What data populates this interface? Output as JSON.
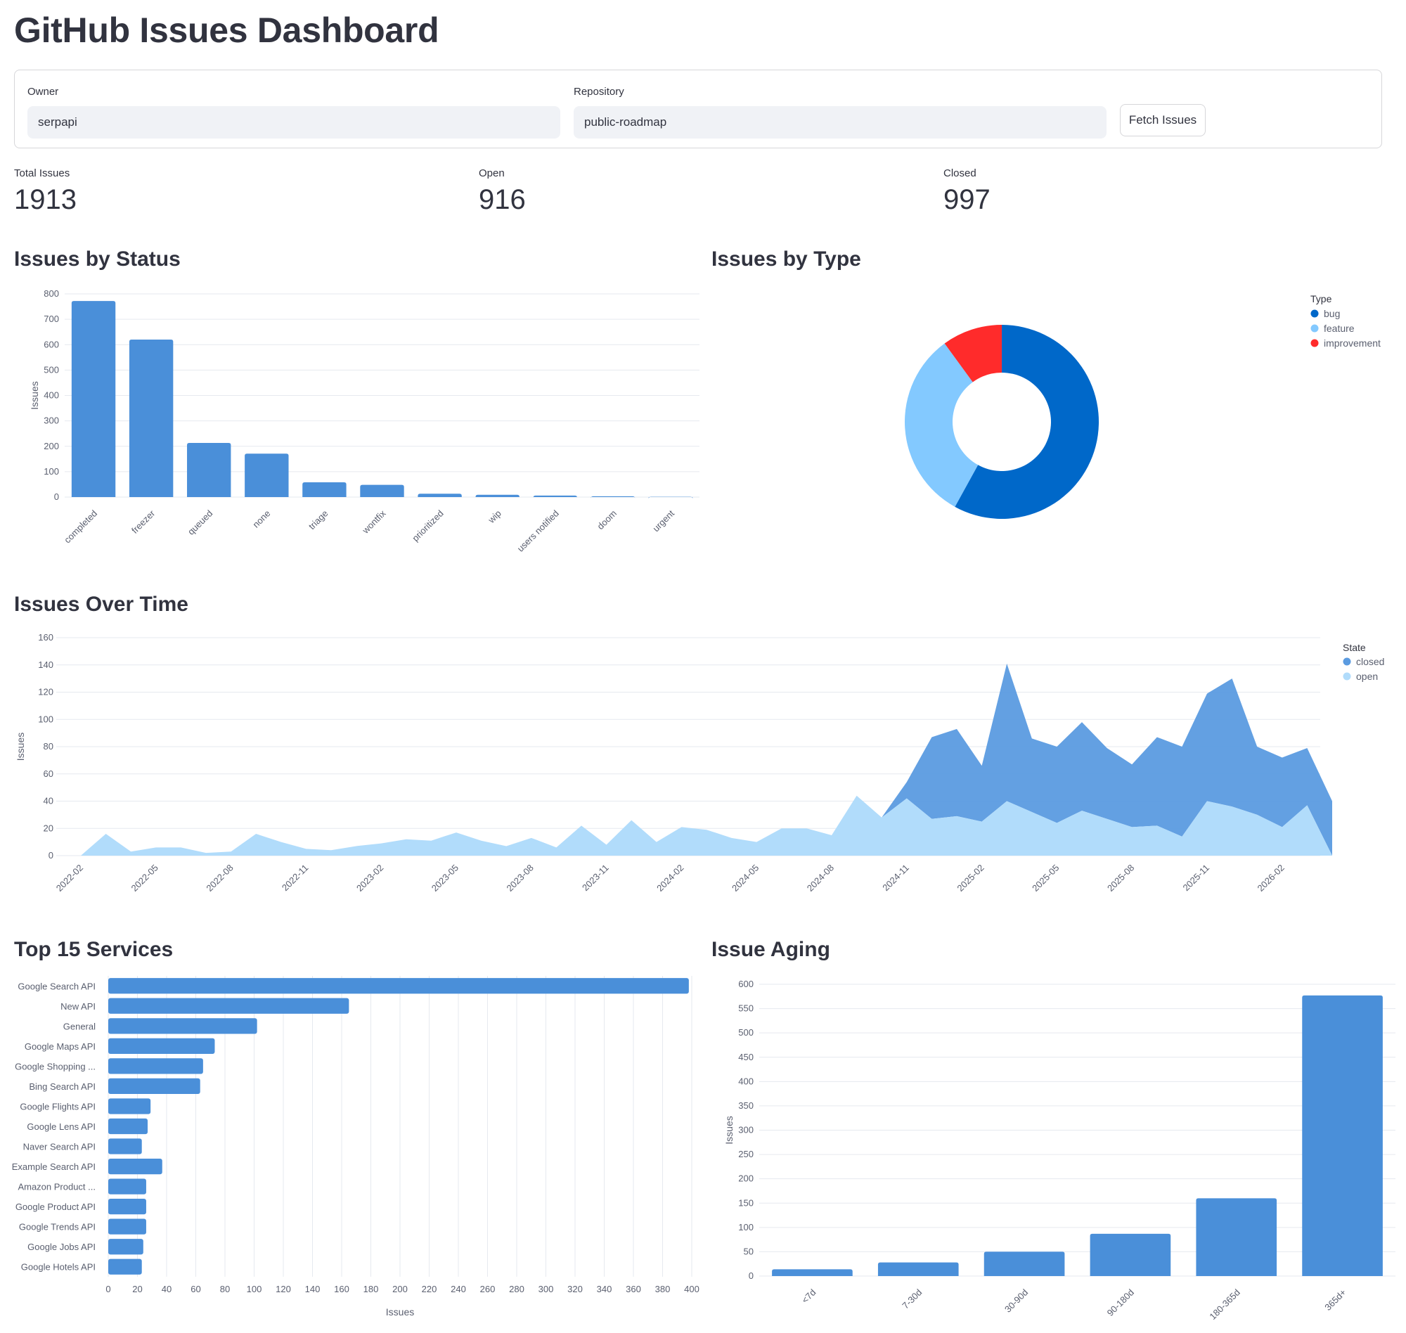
{
  "page": {
    "title": "GitHub Issues Dashboard"
  },
  "form": {
    "owner_label": "Owner",
    "owner_value": "serpapi",
    "repo_label": "Repository",
    "repo_value": "public-roadmap",
    "fetch_label": "Fetch Issues"
  },
  "metrics": {
    "total_label": "Total Issues",
    "total_value": "1913",
    "open_label": "Open",
    "open_value": "916",
    "closed_label": "Closed",
    "closed_value": "997"
  },
  "sections": {
    "status_title": "Issues by Status",
    "type_title": "Issues by Type",
    "time_title": "Issues Over Time",
    "services_title": "Top 15 Services",
    "aging_title": "Issue Aging"
  },
  "colors": {
    "bar": "#4a8fd9",
    "grid": "#e6e9ef",
    "tick": "#5a5f6f",
    "bug": "#0068c9",
    "feature": "#83c9ff",
    "improvement": "#ff2b2b",
    "closed": "#5b9be0",
    "open": "#b1dcfb"
  },
  "chart_data": [
    {
      "id": "status",
      "type": "bar",
      "title": "Issues by Status",
      "ylabel": "Issues",
      "ylim": [
        0,
        800
      ],
      "yticks": [
        0,
        100,
        200,
        300,
        400,
        500,
        600,
        700,
        800
      ],
      "categories": [
        "completed",
        "freezer",
        "queued",
        "none",
        "triage",
        "wontfix",
        "prioritized",
        "wip",
        "users notified",
        "doom",
        "urgent"
      ],
      "values": [
        772,
        620,
        213,
        171,
        58,
        48,
        13,
        9,
        6,
        3,
        1
      ]
    },
    {
      "id": "type",
      "type": "pie",
      "title": "Issues by Type",
      "legend_title": "Type",
      "labels": [
        "bug",
        "feature",
        "improvement"
      ],
      "values": [
        1110,
        611,
        192
      ]
    },
    {
      "id": "time",
      "type": "area",
      "title": "Issues Over Time",
      "ylabel": "Issues",
      "legend_title": "State",
      "ylim": [
        0,
        160
      ],
      "yticks": [
        0,
        20,
        40,
        60,
        80,
        100,
        120,
        140,
        160
      ],
      "start": "2022-02",
      "xticks": [
        "2022-02",
        "2022-05",
        "2022-08",
        "2022-11",
        "2023-02",
        "2023-05",
        "2023-08",
        "2023-11",
        "2024-02",
        "2024-05",
        "2024-08",
        "2024-11",
        "2025-02",
        "2025-05",
        "2025-08",
        "2025-11",
        "2026-02"
      ],
      "series": [
        {
          "name": "closed",
          "values": [
            0,
            0,
            0,
            0,
            0,
            0,
            0,
            0,
            0,
            0,
            0,
            0,
            0,
            0,
            0,
            0,
            0,
            0,
            0,
            0,
            0,
            0,
            0,
            0,
            0,
            0,
            0,
            0,
            0,
            0,
            0,
            0,
            0,
            12,
            60,
            64,
            41,
            101,
            54,
            56,
            65,
            52,
            46,
            65,
            66,
            79,
            94,
            50,
            51,
            42,
            40
          ]
        },
        {
          "name": "open",
          "values": [
            0,
            16,
            3,
            6,
            6,
            2,
            3,
            16,
            10,
            5,
            4,
            7,
            9,
            12,
            11,
            17,
            11,
            7,
            13,
            6,
            22,
            8,
            26,
            10,
            21,
            19,
            13,
            10,
            20,
            20,
            15,
            44,
            28,
            42,
            27,
            29,
            25,
            40,
            32,
            24,
            33,
            27,
            21,
            22,
            14,
            40,
            36,
            30,
            21,
            37,
            0
          ]
        }
      ]
    },
    {
      "id": "services",
      "type": "bar",
      "orientation": "horizontal",
      "title": "Top 15 Services",
      "xlabel": "Issues",
      "xlim": [
        0,
        400
      ],
      "xticks": [
        0,
        20,
        40,
        60,
        80,
        100,
        120,
        140,
        160,
        180,
        200,
        220,
        240,
        260,
        280,
        300,
        320,
        340,
        360,
        380,
        400
      ],
      "categories": [
        "Google Search API",
        "New API",
        "General",
        "Google Maps API",
        "Google Shopping ...",
        "Bing Search API",
        "Google Flights API",
        "Google Lens API",
        "Naver Search API",
        "Example Search API",
        "Amazon Product ...",
        "Google Product API",
        "Google Trends API",
        "Google Jobs API",
        "Google Hotels API"
      ],
      "values": [
        398,
        165,
        102,
        73,
        65,
        63,
        29,
        27,
        23,
        37,
        26,
        26,
        26,
        24,
        23
      ]
    },
    {
      "id": "aging",
      "type": "bar",
      "title": "Issue Aging",
      "ylabel": "Issues",
      "ylim": [
        0,
        600
      ],
      "yticks": [
        0,
        50,
        100,
        150,
        200,
        250,
        300,
        350,
        400,
        450,
        500,
        550,
        600
      ],
      "categories": [
        "<7d",
        "7-30d",
        "30-90d",
        "90-180d",
        "180-365d",
        "365d+"
      ],
      "values": [
        14,
        28,
        50,
        87,
        160,
        577
      ]
    }
  ]
}
